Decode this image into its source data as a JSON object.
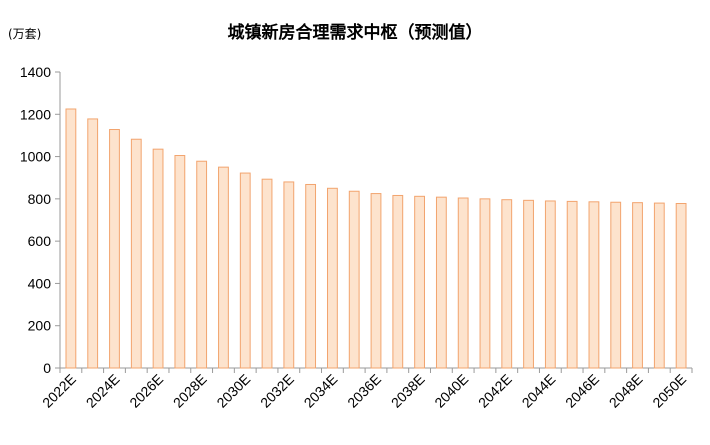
{
  "chart_data": {
    "type": "bar",
    "title": "城镇新房合理需求中枢（预测值）",
    "unit_label": "(万套)",
    "xlabel": "",
    "ylabel": "",
    "ylim": [
      0,
      1400
    ],
    "yticks": [
      "0",
      "200",
      "400",
      "600",
      "800",
      "1000",
      "1200",
      "1400"
    ],
    "categories": [
      "2022E",
      "2023E",
      "2024E",
      "2025E",
      "2026E",
      "2027E",
      "2028E",
      "2029E",
      "2030E",
      "2031E",
      "2032E",
      "2033E",
      "2034E",
      "2035E",
      "2036E",
      "2037E",
      "2038E",
      "2039E",
      "2040E",
      "2041E",
      "2042E",
      "2043E",
      "2044E",
      "2045E",
      "2046E",
      "2047E",
      "2048E",
      "2049E",
      "2050E"
    ],
    "xtick_labels": [
      "2022E",
      "2024E",
      "2026E",
      "2028E",
      "2030E",
      "2032E",
      "2034E",
      "2036E",
      "2038E",
      "2040E",
      "2042E",
      "2044E",
      "2046E",
      "2048E",
      "2050E"
    ],
    "values": [
      1225,
      1178,
      1128,
      1082,
      1035,
      1005,
      978,
      950,
      922,
      893,
      880,
      868,
      850,
      836,
      825,
      816,
      812,
      808,
      804,
      800,
      796,
      793,
      790,
      788,
      786,
      784,
      782,
      780,
      778
    ],
    "bar_fill": "#fde3cd",
    "bar_stroke": "#f2a46e",
    "grid": false,
    "legend": "none"
  }
}
